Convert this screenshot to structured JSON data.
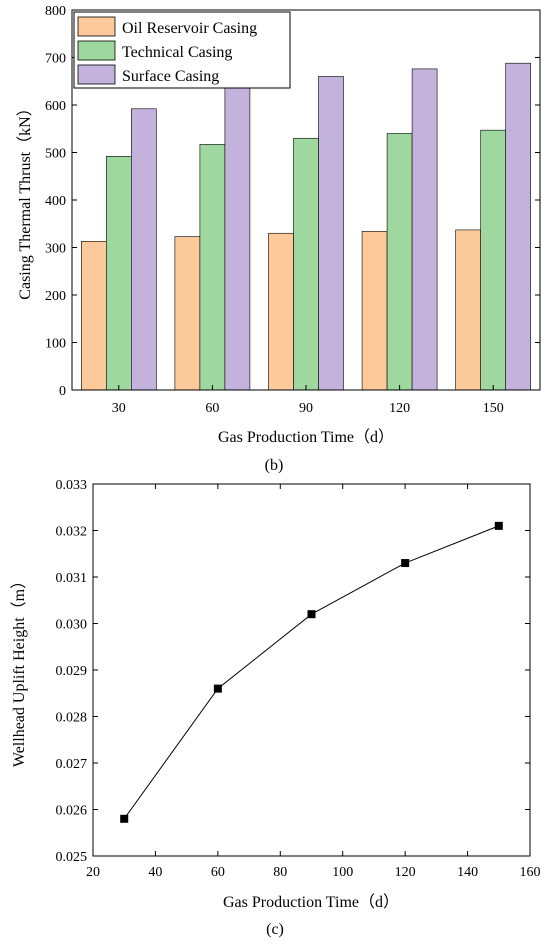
{
  "chart_data": [
    {
      "type": "bar",
      "panel_label": "(b)",
      "title": "",
      "xlabel": "Gas Production Time（d）",
      "ylabel": "Casing Thermal Thrust（kN）",
      "categories": [
        "30",
        "60",
        "90",
        "120",
        "150"
      ],
      "ylim": [
        0,
        800
      ],
      "yticks": [
        0,
        100,
        200,
        300,
        400,
        500,
        600,
        700,
        800
      ],
      "grid": false,
      "legend_position": "top-left",
      "series": [
        {
          "name": "Oil Reservoir Casing",
          "color": "#fcc99b",
          "values": [
            313,
            323,
            330,
            334,
            337
          ]
        },
        {
          "name": "Technical Casing",
          "color": "#9ed89e",
          "values": [
            492,
            517,
            530,
            540,
            547
          ]
        },
        {
          "name": "Surface Casing",
          "color": "#c3b3dc",
          "values": [
            592,
            636,
            660,
            676,
            688
          ]
        }
      ]
    },
    {
      "type": "line",
      "panel_label": "(c)",
      "title": "",
      "xlabel": "Gas Production Time（d）",
      "ylabel": "Wellhead Uplift Height（m）",
      "xlim": [
        20,
        160
      ],
      "ylim": [
        0.025,
        0.033
      ],
      "xticks": [
        "20",
        "40",
        "60",
        "80",
        "100",
        "120",
        "140",
        "160"
      ],
      "yticks": [
        "0.025",
        "0.026",
        "0.027",
        "0.028",
        "0.029",
        "0.030",
        "0.031",
        "0.032",
        "0.033"
      ],
      "grid": false,
      "series": [
        {
          "color": "#000000",
          "marker": "square",
          "x": [
            30,
            60,
            90,
            120,
            150
          ],
          "y": [
            0.0258,
            0.0286,
            0.0302,
            0.0313,
            0.0321
          ]
        }
      ]
    }
  ]
}
